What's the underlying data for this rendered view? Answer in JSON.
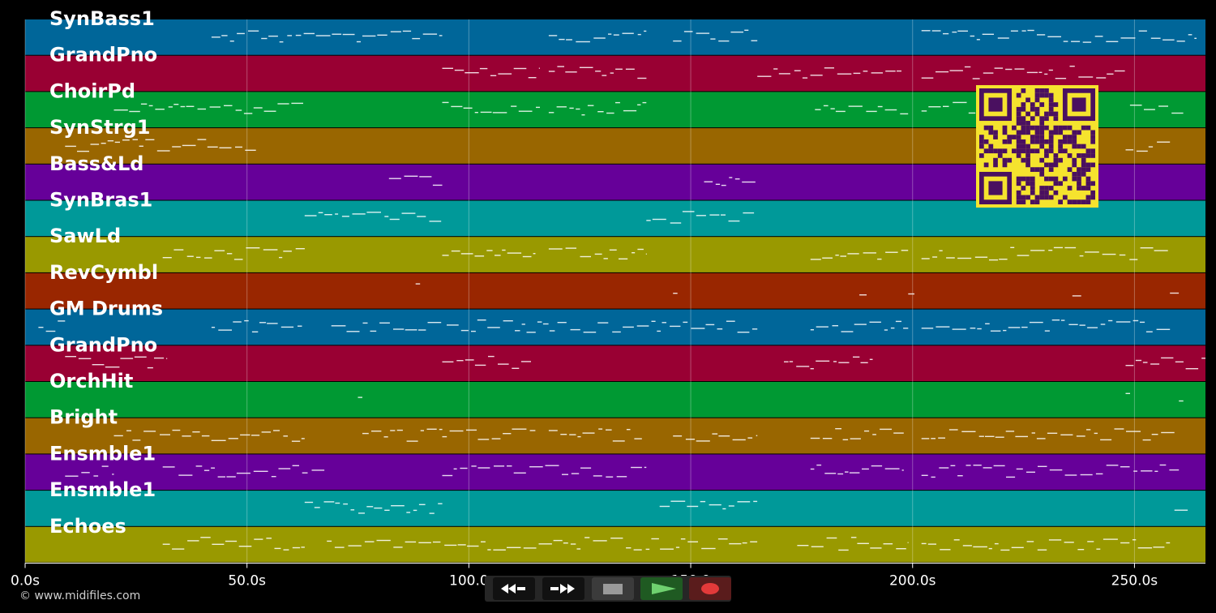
{
  "colors": {
    "background": "#000000",
    "grid": "#ffffff",
    "note": "#ffffff",
    "qr_fg": "#4a1060",
    "qr_bg": "#f5e32e"
  },
  "tracks": [
    {
      "name": "SynBass1",
      "color": "#006699"
    },
    {
      "name": "GrandPno",
      "color": "#990033"
    },
    {
      "name": "ChoirPd",
      "color": "#009933"
    },
    {
      "name": "SynStrg1",
      "color": "#996600"
    },
    {
      "name": "Bass&Ld",
      "color": "#660099"
    },
    {
      "name": "SynBras1",
      "color": "#009999"
    },
    {
      "name": "SawLd",
      "color": "#999900"
    },
    {
      "name": "RevCymbl",
      "color": "#992600"
    },
    {
      "name": "GM Drums",
      "color": "#006699"
    },
    {
      "name": "GrandPno",
      "color": "#990033"
    },
    {
      "name": "OrchHit",
      "color": "#009933"
    },
    {
      "name": "Bright",
      "color": "#996600"
    },
    {
      "name": "Ensmble1",
      "color": "#660099"
    },
    {
      "name": "Ensmble1",
      "color": "#009999"
    },
    {
      "name": "Echoes",
      "color": "#999900"
    }
  ],
  "timeline": {
    "max_seconds": 266,
    "ticks": [
      {
        "t": 0,
        "label": "0.0s"
      },
      {
        "t": 50,
        "label": "50.0s"
      },
      {
        "t": 100,
        "label": "100.0"
      },
      {
        "t": 150,
        "label": "150.0"
      },
      {
        "t": 200,
        "label": "200.0s"
      },
      {
        "t": 250,
        "label": "250.0s"
      }
    ]
  },
  "notes": [
    [
      [
        42,
        94
      ],
      [
        118,
        140
      ],
      [
        146,
        165
      ],
      [
        202,
        264
      ]
    ],
    [
      [
        94,
        116
      ],
      [
        118,
        140
      ],
      [
        165,
        198
      ],
      [
        202,
        248
      ]
    ],
    [
      [
        20,
        63
      ],
      [
        94,
        116
      ],
      [
        118,
        140
      ],
      [
        178,
        199
      ],
      [
        202,
        215
      ],
      [
        249,
        261
      ]
    ],
    [
      [
        9,
        52
      ],
      [
        248,
        258
      ]
    ],
    [
      [
        82,
        94
      ],
      [
        153,
        165
      ]
    ],
    [
      [
        63,
        94
      ],
      [
        140,
        165
      ]
    ],
    [
      [
        31,
        63
      ],
      [
        94,
        115
      ],
      [
        118,
        140
      ],
      [
        177,
        199
      ],
      [
        202,
        258
      ]
    ],
    [
      [
        88,
        89
      ],
      [
        146,
        147
      ],
      [
        188,
        190
      ],
      [
        199,
        201
      ],
      [
        236,
        238
      ],
      [
        258,
        260
      ]
    ],
    [
      [
        3,
        9
      ],
      [
        42,
        63
      ],
      [
        69,
        94
      ],
      [
        95,
        165
      ],
      [
        177,
        199
      ],
      [
        202,
        258
      ]
    ],
    [
      [
        9,
        32
      ],
      [
        94,
        114
      ],
      [
        171,
        191
      ],
      [
        248,
        266
      ]
    ],
    [
      [
        75,
        76
      ],
      [
        248,
        249
      ],
      [
        260,
        261
      ]
    ],
    [
      [
        20,
        63
      ],
      [
        76,
        94
      ],
      [
        94,
        115
      ],
      [
        118,
        139
      ],
      [
        146,
        165
      ],
      [
        177,
        198
      ],
      [
        202,
        259
      ]
    ],
    [
      [
        9,
        20
      ],
      [
        31,
        68
      ],
      [
        94,
        140
      ],
      [
        177,
        198
      ],
      [
        202,
        260
      ]
    ],
    [
      [
        63,
        94
      ],
      [
        143,
        165
      ],
      [
        259,
        262
      ]
    ],
    [
      [
        31,
        63
      ],
      [
        68,
        165
      ],
      [
        174,
        199
      ],
      [
        202,
        258
      ]
    ]
  ],
  "copyright": "© www.midifiles.com",
  "transport": {
    "rewind_icon": "rewind-icon",
    "ffwd_icon": "fast-forward-icon",
    "stop_icon": "stop-icon",
    "play_icon": "play-icon",
    "record_icon": "record-icon"
  }
}
